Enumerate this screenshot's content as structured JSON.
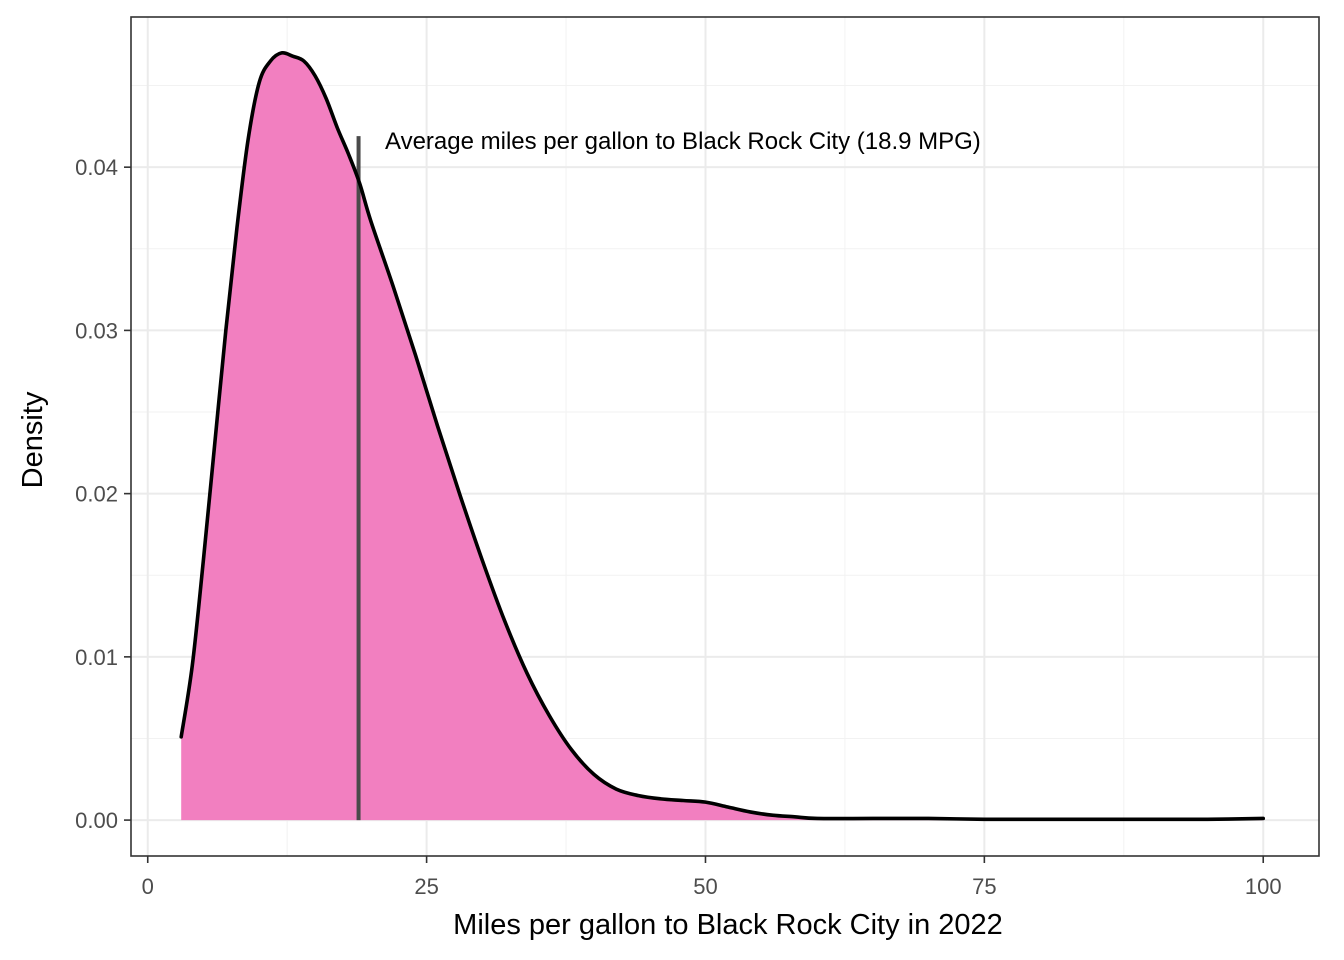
{
  "chart_data": {
    "type": "area",
    "title": "",
    "xlabel": "Miles per gallon to Black Rock City in 2022",
    "ylabel": "Density",
    "xlim": [
      -1.5,
      105
    ],
    "ylim": [
      -0.0022,
      0.0492
    ],
    "x_ticks": [
      0,
      25,
      50,
      75,
      100
    ],
    "x_tick_labels": [
      "0",
      "25",
      "50",
      "75",
      "100"
    ],
    "x_minor_ticks": [
      12.5,
      37.5,
      62.5,
      87.5
    ],
    "y_ticks": [
      0.0,
      0.01,
      0.02,
      0.03,
      0.04
    ],
    "y_tick_labels": [
      "0.00",
      "0.01",
      "0.02",
      "0.03",
      "0.04"
    ],
    "y_minor_ticks": [
      0.005,
      0.015,
      0.025,
      0.035,
      0.045
    ],
    "grid": true,
    "legend": "none",
    "fill_color": "#f27fc0",
    "line_color": "#000000",
    "series": [
      {
        "x": [
          3,
          4,
          5,
          6,
          7,
          8,
          9,
          10,
          11,
          12,
          13,
          14,
          15,
          16,
          17,
          18,
          19,
          20,
          22,
          24,
          26,
          28,
          30,
          32,
          34,
          36,
          38,
          40,
          42,
          44,
          46,
          48,
          50,
          52,
          54,
          56,
          58,
          60,
          65,
          70,
          75,
          80,
          85,
          90,
          95,
          100
        ],
        "y": [
          0.0051,
          0.0095,
          0.016,
          0.023,
          0.03,
          0.0363,
          0.0417,
          0.0452,
          0.0465,
          0.047,
          0.0468,
          0.0465,
          0.0456,
          0.0442,
          0.0424,
          0.0408,
          0.039,
          0.0367,
          0.0327,
          0.0285,
          0.0241,
          0.0199,
          0.0159,
          0.0122,
          0.009,
          0.0064,
          0.0043,
          0.0028,
          0.0019,
          0.0015,
          0.0013,
          0.0012,
          0.0011,
          0.0008,
          0.0005,
          0.0003,
          0.0002,
          0.0001,
          0.0001,
          0.0001,
          5e-05,
          5e-05,
          5e-05,
          5e-05,
          5e-05,
          0.0001
        ]
      }
    ],
    "reference_line": {
      "x": 18.9,
      "y_top": 0.0419,
      "color": "#4a4a4a",
      "label": "Average miles per gallon to Black Rock City (18.9 MPG)"
    }
  }
}
